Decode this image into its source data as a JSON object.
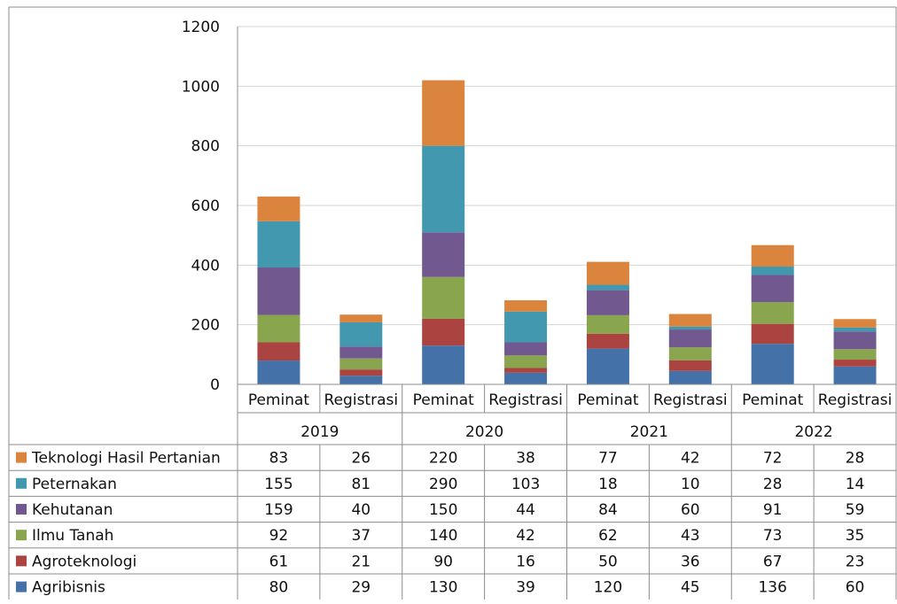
{
  "chart_data": {
    "type": "bar",
    "stacked": true,
    "title": "",
    "xlabel": "",
    "ylabel": "",
    "ylim": [
      0,
      1200
    ],
    "yticks": [
      0,
      200,
      400,
      600,
      800,
      1000,
      1200
    ],
    "grid": true,
    "legend": "data-table-left",
    "groups": [
      {
        "label": "2019",
        "categories": [
          "Peminat",
          "Registrasi"
        ]
      },
      {
        "label": "2020",
        "categories": [
          "Peminat",
          "Registrasi"
        ]
      },
      {
        "label": "2021",
        "categories": [
          "Peminat",
          "Registrasi"
        ]
      },
      {
        "label": "2022",
        "categories": [
          "Peminat",
          "Registrasi"
        ]
      }
    ],
    "series": [
      {
        "name": "Agribisnis",
        "color": "#4472a8",
        "values": [
          80,
          29,
          130,
          39,
          120,
          45,
          136,
          60
        ]
      },
      {
        "name": "Agroteknologi",
        "color": "#ab4440",
        "values": [
          61,
          21,
          90,
          16,
          50,
          36,
          67,
          23
        ]
      },
      {
        "name": "Ilmu Tanah",
        "color": "#89a54e",
        "values": [
          92,
          37,
          140,
          42,
          62,
          43,
          73,
          35
        ]
      },
      {
        "name": "Kehutanan",
        "color": "#71588f",
        "values": [
          159,
          40,
          150,
          44,
          84,
          60,
          91,
          59
        ]
      },
      {
        "name": "Peternakan",
        "color": "#4198af",
        "values": [
          155,
          81,
          290,
          103,
          18,
          10,
          28,
          14
        ]
      },
      {
        "name": "Teknologi Hasil Pertanian",
        "color": "#db843d",
        "values": [
          83,
          26,
          220,
          38,
          77,
          42,
          72,
          28
        ]
      }
    ]
  }
}
